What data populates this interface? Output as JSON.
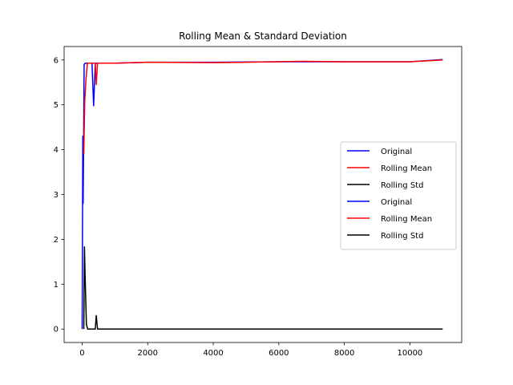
{
  "chart_data": {
    "type": "line",
    "title": "Rolling Mean & Standard Deviation",
    "xlabel": "",
    "ylabel": "",
    "xlim": [
      -550,
      11580
    ],
    "ylim": [
      -0.3,
      6.3
    ],
    "xticks": [
      0,
      2000,
      4000,
      6000,
      8000,
      10000
    ],
    "yticks": [
      0,
      1,
      2,
      3,
      4,
      5,
      6
    ],
    "grid": false,
    "legend_position": "center-right",
    "series": [
      {
        "name": "Original",
        "color": "#0000ff",
        "points": [
          [
            0,
            0
          ],
          [
            20,
            4.3
          ],
          [
            30,
            2.8
          ],
          [
            40,
            3.7
          ],
          [
            60,
            5.9
          ],
          [
            100,
            5.93
          ],
          [
            300,
            5.93
          ],
          [
            350,
            4.98
          ],
          [
            400,
            5.93
          ],
          [
            1000,
            5.93
          ],
          [
            2000,
            5.95
          ],
          [
            4000,
            5.95
          ],
          [
            6000,
            5.96
          ],
          [
            8000,
            5.96
          ],
          [
            10000,
            5.96
          ],
          [
            11000,
            6.01
          ]
        ]
      },
      {
        "name": "Rolling Mean",
        "color": "#ff0000",
        "points": [
          [
            50,
            3.9
          ],
          [
            80,
            5.1
          ],
          [
            120,
            5.6
          ],
          [
            160,
            5.93
          ],
          [
            400,
            5.93
          ],
          [
            430,
            5.45
          ],
          [
            470,
            5.93
          ],
          [
            1000,
            5.93
          ],
          [
            2000,
            5.95
          ],
          [
            4000,
            5.94
          ],
          [
            5000,
            5.95
          ],
          [
            6600,
            5.97
          ],
          [
            8000,
            5.96
          ],
          [
            10000,
            5.96
          ],
          [
            11000,
            6.0
          ]
        ]
      },
      {
        "name": "Rolling Std",
        "color": "#000000",
        "points": [
          [
            50,
            0
          ],
          [
            70,
            1.83
          ],
          [
            90,
            1.2
          ],
          [
            130,
            0.1
          ],
          [
            170,
            0
          ],
          [
            400,
            0
          ],
          [
            430,
            0.3
          ],
          [
            470,
            0
          ],
          [
            1000,
            0
          ],
          [
            2000,
            0
          ],
          [
            4000,
            0
          ],
          [
            6000,
            0
          ],
          [
            8000,
            0
          ],
          [
            10000,
            0
          ],
          [
            11000,
            0
          ]
        ]
      }
    ],
    "legend": [
      {
        "label": "Original",
        "color": "#0000ff"
      },
      {
        "label": "Rolling Mean",
        "color": "#ff0000"
      },
      {
        "label": "Rolling Std",
        "color": "#000000"
      },
      {
        "label": "Original",
        "color": "#0000ff"
      },
      {
        "label": "Rolling Mean",
        "color": "#ff0000"
      },
      {
        "label": "Rolling Std",
        "color": "#000000"
      }
    ]
  }
}
